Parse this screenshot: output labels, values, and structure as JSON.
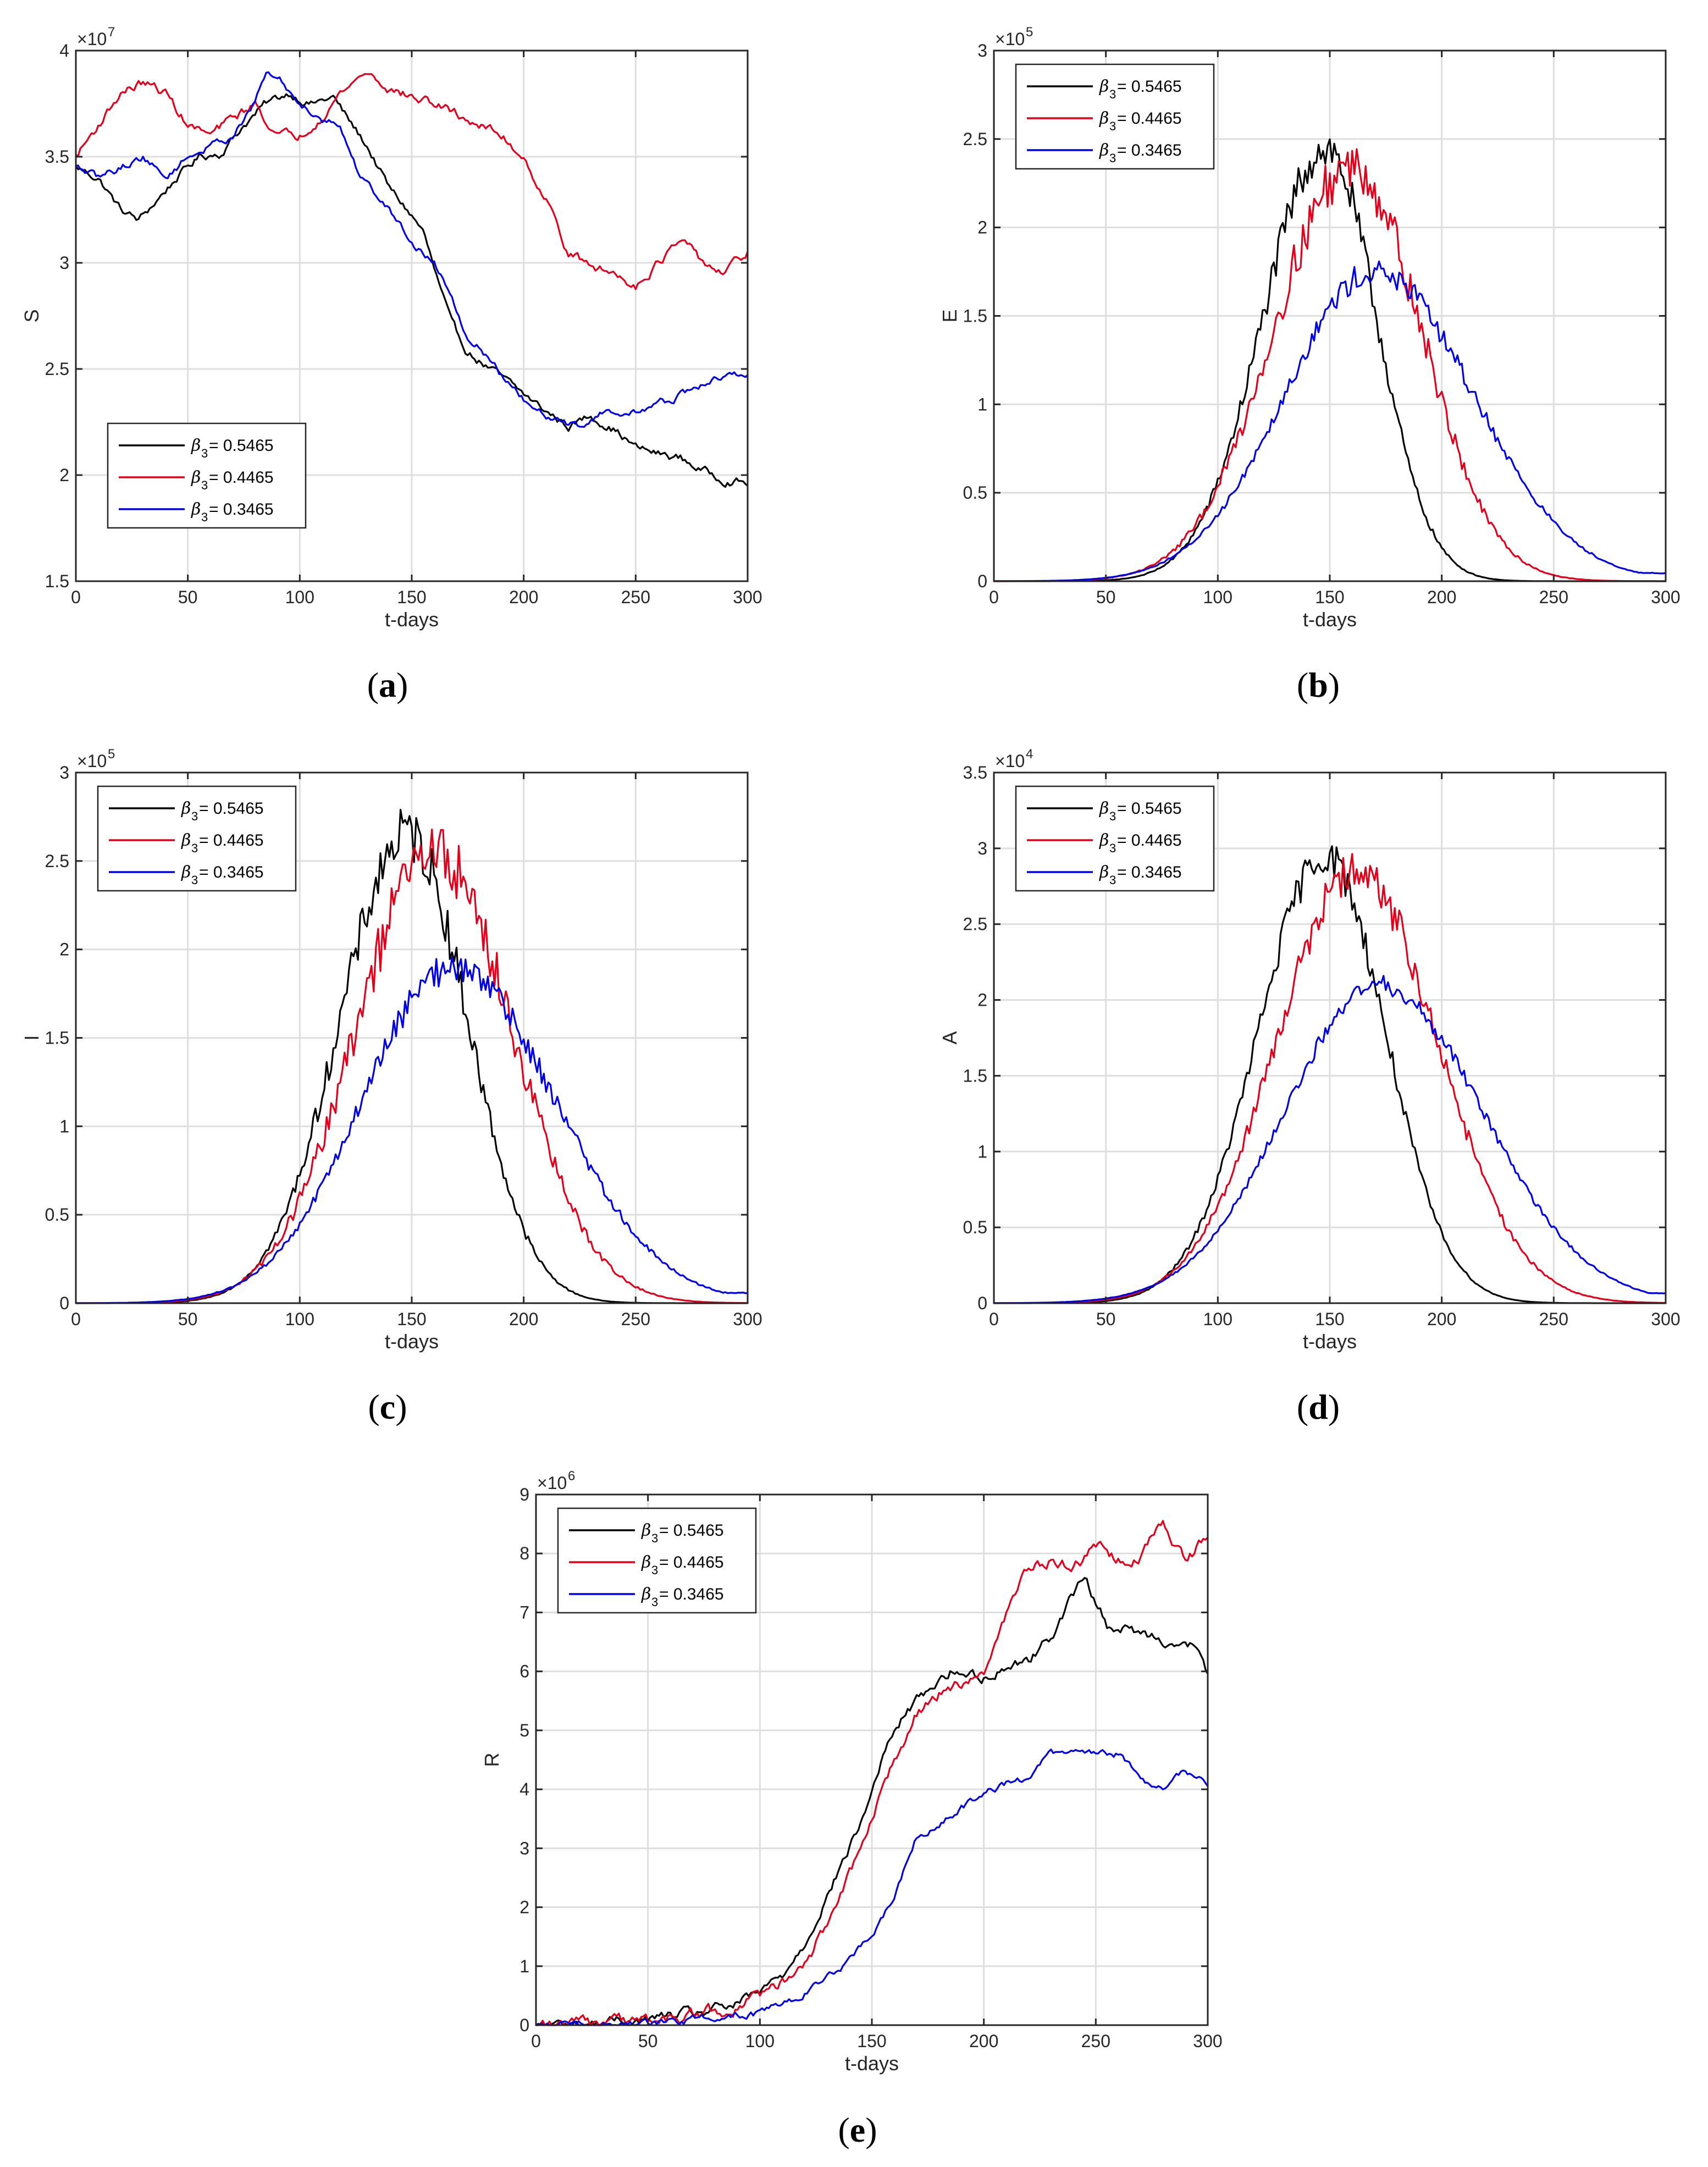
{
  "figure": {
    "colors": {
      "s1": "#000000",
      "s2": "#e3001b",
      "s3": "#0000e8",
      "grid": "#dedede",
      "axis": "#262626"
    },
    "legend_prefix": "β",
    "legend_subscript": "3"
  },
  "chart_data": [
    {
      "id": "a",
      "type": "line",
      "caption": "a",
      "ylabel": "S",
      "xlabel": "t-days",
      "xlim": [
        0,
        300
      ],
      "ylim": [
        15000000,
        40000000
      ],
      "exponent_label": "×10",
      "exponent": "7",
      "xticks": [
        0,
        50,
        100,
        150,
        200,
        250,
        300
      ],
      "xtick_labels": [
        "0",
        "50",
        "100",
        "150",
        "200",
        "250",
        "300"
      ],
      "yticks": [
        15000000,
        20000000,
        25000000,
        30000000,
        35000000,
        40000000
      ],
      "ytick_labels": [
        "1.5",
        "2",
        "2.5",
        "3",
        "3.5",
        "4"
      ],
      "legend_loc": "lower-left",
      "series": [
        {
          "name": "= 0.5465",
          "color_key": "s1",
          "shape": "walk",
          "points": [
            [
              0,
              34.5
            ],
            [
              10,
              34
            ],
            [
              20,
              32.5
            ],
            [
              28,
              32
            ],
            [
              35,
              32.8
            ],
            [
              45,
              34
            ],
            [
              55,
              35
            ],
            [
              65,
              35.2
            ],
            [
              75,
              36.5
            ],
            [
              85,
              37.5
            ],
            [
              95,
              38
            ],
            [
              105,
              37.5
            ],
            [
              115,
              37.8
            ],
            [
              120,
              37
            ],
            [
              130,
              35.5
            ],
            [
              140,
              33.5
            ],
            [
              148,
              32.5
            ],
            [
              155,
              31.5
            ],
            [
              162,
              29
            ],
            [
              168,
              27
            ],
            [
              175,
              25.8
            ],
            [
              185,
              25
            ],
            [
              195,
              24.2
            ],
            [
              210,
              23
            ],
            [
              220,
              22.3
            ],
            [
              230,
              22.8
            ],
            [
              240,
              22.2
            ],
            [
              250,
              21.3
            ],
            [
              260,
              21
            ],
            [
              270,
              20.8
            ],
            [
              280,
              20.2
            ],
            [
              290,
              19.8
            ],
            [
              300,
              19.6
            ]
          ],
          "amp": 0.22,
          "scale": 1000000
        },
        {
          "name": "= 0.4465",
          "color_key": "s2",
          "shape": "walk",
          "points": [
            [
              0,
              35
            ],
            [
              10,
              36.5
            ],
            [
              20,
              38
            ],
            [
              30,
              38.5
            ],
            [
              40,
              38
            ],
            [
              50,
              36.5
            ],
            [
              60,
              36
            ],
            [
              70,
              36.8
            ],
            [
              80,
              37.5
            ],
            [
              90,
              36
            ],
            [
              100,
              36
            ],
            [
              110,
              37
            ],
            [
              120,
              38.2
            ],
            [
              130,
              39
            ],
            [
              140,
              38.2
            ],
            [
              150,
              37.8
            ],
            [
              160,
              37.5
            ],
            [
              170,
              37
            ],
            [
              180,
              36.5
            ],
            [
              190,
              36
            ],
            [
              200,
              35
            ],
            [
              210,
              33
            ],
            [
              220,
              30.5
            ],
            [
              230,
              29.8
            ],
            [
              240,
              29.5
            ],
            [
              250,
              29
            ],
            [
              260,
              30
            ],
            [
              270,
              31
            ],
            [
              280,
              30
            ],
            [
              290,
              29.5
            ],
            [
              300,
              30.5
            ]
          ],
          "amp": 0.25,
          "scale": 1000000
        },
        {
          "name": "= 0.3465",
          "color_key": "s3",
          "shape": "walk",
          "points": [
            [
              0,
              34.5
            ],
            [
              10,
              34
            ],
            [
              20,
              34.5
            ],
            [
              30,
              35
            ],
            [
              40,
              34
            ],
            [
              50,
              35
            ],
            [
              60,
              35.5
            ],
            [
              70,
              36
            ],
            [
              80,
              37.5
            ],
            [
              85,
              39
            ],
            [
              92,
              38.5
            ],
            [
              100,
              37.5
            ],
            [
              110,
              36.8
            ],
            [
              118,
              36.5
            ],
            [
              125,
              34.5
            ],
            [
              132,
              33.5
            ],
            [
              140,
              32.5
            ],
            [
              150,
              31
            ],
            [
              160,
              30
            ],
            [
              168,
              28.5
            ],
            [
              175,
              26.5
            ],
            [
              185,
              25.5
            ],
            [
              195,
              24
            ],
            [
              205,
              23
            ],
            [
              215,
              22.5
            ],
            [
              225,
              22.3
            ],
            [
              235,
              23
            ],
            [
              245,
              22.8
            ],
            [
              255,
              23.2
            ],
            [
              265,
              23.5
            ],
            [
              275,
              24
            ],
            [
              285,
              24.5
            ],
            [
              300,
              24.8
            ]
          ],
          "amp": 0.2,
          "scale": 1000000
        }
      ]
    },
    {
      "id": "b",
      "type": "line",
      "caption": "b",
      "ylabel": "E",
      "xlabel": "t-days",
      "xlim": [
        0,
        300
      ],
      "ylim": [
        0,
        300000
      ],
      "exponent_label": "×10",
      "exponent": "5",
      "xticks": [
        0,
        50,
        100,
        150,
        200,
        250,
        300
      ],
      "xtick_labels": [
        "0",
        "50",
        "100",
        "150",
        "200",
        "250",
        "300"
      ],
      "yticks": [
        0,
        50000,
        100000,
        150000,
        200000,
        250000,
        300000
      ],
      "ytick_labels": [
        "0",
        "0.5",
        "1",
        "1.5",
        "2",
        "2.5",
        "3"
      ],
      "legend_loc": "top-left",
      "series": [
        {
          "name": "= 0.5465",
          "color_key": "s1",
          "shape": "bell",
          "scale": 100000,
          "peak": 2.45,
          "center": 148,
          "wl": 28,
          "wr": 23,
          "tail": 0.0,
          "noise": 0.09
        },
        {
          "name": "= 0.4465",
          "color_key": "s2",
          "shape": "bell",
          "scale": 100000,
          "peak": 2.35,
          "center": 160,
          "wl": 35,
          "wr": 31,
          "tail": 0.0,
          "noise": 0.11
        },
        {
          "name": "= 0.3465",
          "color_key": "s3",
          "shape": "bell",
          "scale": 100000,
          "peak": 1.75,
          "center": 170,
          "wl": 40,
          "wr": 44,
          "tail": 0.07,
          "noise": 0.07
        }
      ]
    },
    {
      "id": "c",
      "type": "line",
      "caption": "c",
      "ylabel": "I",
      "xlabel": "t-days",
      "xlim": [
        0,
        300
      ],
      "ylim": [
        0,
        300000
      ],
      "exponent_label": "×10",
      "exponent": "5",
      "xticks": [
        0,
        50,
        100,
        150,
        200,
        250,
        300
      ],
      "xtick_labels": [
        "0",
        "50",
        "100",
        "150",
        "200",
        "250",
        "300"
      ],
      "yticks": [
        0,
        50000,
        100000,
        150000,
        200000,
        250000,
        300000
      ],
      "ytick_labels": [
        "0",
        "0.5",
        "1",
        "1.5",
        "2",
        "2.5",
        "3"
      ],
      "legend_loc": "top-left",
      "series": [
        {
          "name": "= 0.5465",
          "color_key": "s1",
          "shape": "bell",
          "scale": 100000,
          "peak": 2.65,
          "center": 148,
          "wl": 30,
          "wr": 27,
          "tail": 0.0,
          "noise": 0.1
        },
        {
          "name": "= 0.4465",
          "color_key": "s2",
          "shape": "bell",
          "scale": 100000,
          "peak": 2.55,
          "center": 160,
          "wl": 35,
          "wr": 35,
          "tail": 0.0,
          "noise": 0.12
        },
        {
          "name": "= 0.3465",
          "color_key": "s3",
          "shape": "bell",
          "scale": 100000,
          "peak": 1.9,
          "center": 168,
          "wl": 40,
          "wr": 46,
          "tail": 0.09,
          "noise": 0.08
        }
      ]
    },
    {
      "id": "d",
      "type": "line",
      "caption": "d",
      "ylabel": "A",
      "xlabel": "t-days",
      "xlim": [
        0,
        300
      ],
      "ylim": [
        0,
        35000
      ],
      "exponent_label": "×10",
      "exponent": "4",
      "xticks": [
        0,
        50,
        100,
        150,
        200,
        250,
        300
      ],
      "xtick_labels": [
        "0",
        "50",
        "100",
        "150",
        "200",
        "250",
        "300"
      ],
      "yticks": [
        0,
        5000,
        10000,
        15000,
        20000,
        25000,
        30000,
        35000
      ],
      "ytick_labels": [
        "0",
        "0.5",
        "1",
        "1.5",
        "2",
        "2.5",
        "3",
        "3.5"
      ],
      "legend_loc": "top-left",
      "series": [
        {
          "name": "= 0.5465",
          "color_key": "s1",
          "shape": "bell",
          "scale": 10000,
          "peak": 2.95,
          "center": 148,
          "wl": 30,
          "wr": 27,
          "tail": 0.0,
          "noise": 0.07
        },
        {
          "name": "= 0.4465",
          "color_key": "s2",
          "shape": "bell",
          "scale": 10000,
          "peak": 2.85,
          "center": 162,
          "wl": 36,
          "wr": 36,
          "tail": 0.0,
          "noise": 0.08
        },
        {
          "name": "= 0.3465",
          "color_key": "s3",
          "shape": "bell",
          "scale": 10000,
          "peak": 2.1,
          "center": 172,
          "wl": 42,
          "wr": 46,
          "tail": 0.1,
          "noise": 0.05
        }
      ]
    },
    {
      "id": "e",
      "type": "line",
      "caption": "e",
      "ylabel": "R",
      "xlabel": "t-days",
      "xlim": [
        0,
        300
      ],
      "ylim": [
        0,
        9000000
      ],
      "exponent_label": "×10",
      "exponent": "6",
      "xticks": [
        0,
        50,
        100,
        150,
        200,
        250,
        300
      ],
      "xtick_labels": [
        "0",
        "50",
        "100",
        "150",
        "200",
        "250",
        "300"
      ],
      "yticks": [
        0,
        1000000,
        2000000,
        3000000,
        4000000,
        5000000,
        6000000,
        7000000,
        8000000,
        9000000
      ],
      "ytick_labels": [
        "0",
        "1",
        "2",
        "3",
        "4",
        "5",
        "6",
        "7",
        "8",
        "9"
      ],
      "legend_loc": "top-left",
      "series": [
        {
          "name": "= 0.5465",
          "color_key": "s1",
          "shape": "walk",
          "scale": 1000000,
          "points": [
            [
              0,
              0
            ],
            [
              25,
              0.02
            ],
            [
              50,
              0.1
            ],
            [
              75,
              0.22
            ],
            [
              90,
              0.35
            ],
            [
              100,
              0.55
            ],
            [
              110,
              0.85
            ],
            [
              120,
              1.4
            ],
            [
              130,
              2.2
            ],
            [
              140,
              3.0
            ],
            [
              148,
              3.7
            ],
            [
              155,
              4.6
            ],
            [
              165,
              5.3
            ],
            [
              175,
              5.7
            ],
            [
              185,
              6.0
            ],
            [
              200,
              5.9
            ],
            [
              210,
              6.1
            ],
            [
              220,
              6.2
            ],
            [
              230,
              6.6
            ],
            [
              240,
              7.3
            ],
            [
              245,
              7.6
            ],
            [
              250,
              7.2
            ],
            [
              255,
              6.8
            ],
            [
              265,
              6.7
            ],
            [
              275,
              6.6
            ],
            [
              285,
              6.5
            ],
            [
              295,
              6.4
            ],
            [
              300,
              5.9
            ]
          ],
          "amp": 0.1
        },
        {
          "name": "= 0.4465",
          "color_key": "s2",
          "shape": "walk",
          "scale": 1000000,
          "points": [
            [
              0,
              0
            ],
            [
              25,
              0.02
            ],
            [
              50,
              0.08
            ],
            [
              75,
              0.2
            ],
            [
              90,
              0.3
            ],
            [
              100,
              0.5
            ],
            [
              110,
              0.7
            ],
            [
              120,
              1.1
            ],
            [
              130,
              1.7
            ],
            [
              140,
              2.5
            ],
            [
              150,
              3.4
            ],
            [
              160,
              4.5
            ],
            [
              170,
              5.3
            ],
            [
              180,
              5.6
            ],
            [
              190,
              5.8
            ],
            [
              200,
              5.9
            ],
            [
              210,
              7.0
            ],
            [
              220,
              7.8
            ],
            [
              230,
              7.9
            ],
            [
              240,
              7.8
            ],
            [
              250,
              8.1
            ],
            [
              260,
              7.9
            ],
            [
              270,
              8.0
            ],
            [
              280,
              8.5
            ],
            [
              290,
              7.9
            ],
            [
              300,
              8.3
            ]
          ],
          "amp": 0.12
        },
        {
          "name": "= 0.3465",
          "color_key": "s3",
          "shape": "walk",
          "scale": 1000000,
          "points": [
            [
              0,
              0
            ],
            [
              50,
              0.03
            ],
            [
              75,
              0.1
            ],
            [
              100,
              0.2
            ],
            [
              110,
              0.35
            ],
            [
              120,
              0.55
            ],
            [
              130,
              0.8
            ],
            [
              140,
              1.1
            ],
            [
              150,
              1.5
            ],
            [
              160,
              2.2
            ],
            [
              170,
              3.2
            ],
            [
              180,
              3.4
            ],
            [
              190,
              3.7
            ],
            [
              200,
              3.9
            ],
            [
              210,
              4.1
            ],
            [
              220,
              4.2
            ],
            [
              230,
              4.6
            ],
            [
              240,
              4.6
            ],
            [
              250,
              4.6
            ],
            [
              260,
              4.6
            ],
            [
              270,
              4.2
            ],
            [
              280,
              4.0
            ],
            [
              290,
              4.3
            ],
            [
              300,
              4.1
            ]
          ],
          "amp": 0.07
        }
      ]
    }
  ]
}
